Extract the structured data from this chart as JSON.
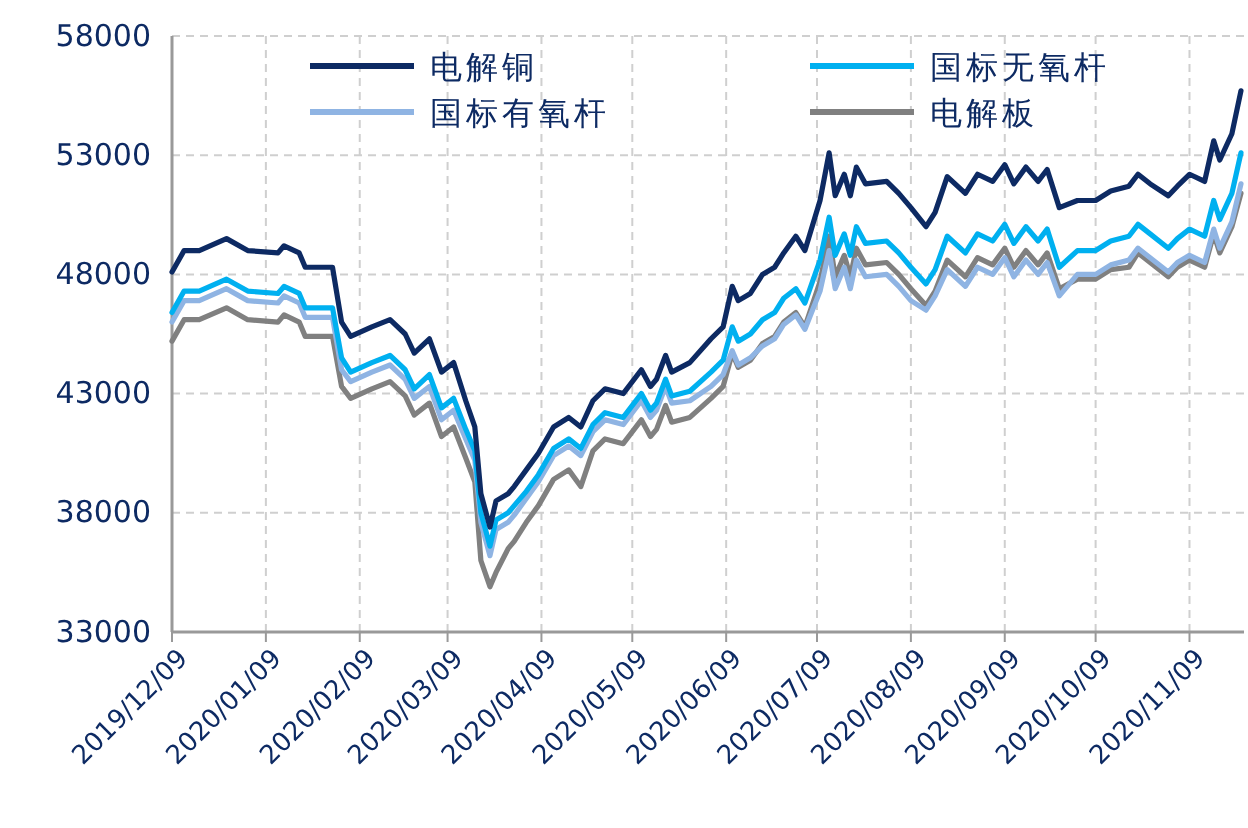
{
  "chart_data": {
    "type": "line",
    "x": [
      "2019-12-09",
      "2019-12-13",
      "2019-12-18",
      "2019-12-27",
      "2020-01-03",
      "2020-01-13",
      "2020-01-15",
      "2020-01-20",
      "2020-01-22",
      "2020-01-31",
      "2020-02-03",
      "2020-02-06",
      "2020-02-13",
      "2020-02-19",
      "2020-02-24",
      "2020-02-27",
      "2020-03-03",
      "2020-03-07",
      "2020-03-11",
      "2020-03-15",
      "2020-03-18",
      "2020-03-20",
      "2020-03-23",
      "2020-03-25",
      "2020-03-29",
      "2020-03-31",
      "2020-04-04",
      "2020-04-08",
      "2020-04-13",
      "2020-04-18",
      "2020-04-22",
      "2020-04-26",
      "2020-04-30",
      "2020-05-06",
      "2020-05-12",
      "2020-05-15",
      "2020-05-17",
      "2020-05-20",
      "2020-05-22",
      "2020-05-28",
      "2020-06-04",
      "2020-06-08",
      "2020-06-11",
      "2020-06-13",
      "2020-06-17",
      "2020-06-21",
      "2020-06-25",
      "2020-06-28",
      "2020-07-02",
      "2020-07-05",
      "2020-07-10",
      "2020-07-13",
      "2020-07-15",
      "2020-07-18",
      "2020-07-20",
      "2020-07-22",
      "2020-07-25",
      "2020-08-01",
      "2020-08-05",
      "2020-08-09",
      "2020-08-14",
      "2020-08-17",
      "2020-08-21",
      "2020-08-27",
      "2020-08-31",
      "2020-09-05",
      "2020-09-09",
      "2020-09-12",
      "2020-09-16",
      "2020-09-20",
      "2020-09-23",
      "2020-09-27",
      "2020-10-03",
      "2020-10-09",
      "2020-10-14",
      "2020-10-20",
      "2020-10-23",
      "2020-10-27",
      "2020-11-02",
      "2020-11-05",
      "2020-11-09",
      "2020-11-14",
      "2020-11-17",
      "2020-11-19",
      "2020-11-23",
      "2020-11-26"
    ],
    "series": [
      {
        "name": "电解铜",
        "color": "#0d2a63",
        "values": [
          48100,
          49000,
          49000,
          49500,
          49000,
          48900,
          49200,
          48900,
          48300,
          48300,
          46000,
          45400,
          45800,
          46100,
          45500,
          44700,
          45300,
          43900,
          44300,
          42700,
          41600,
          38800,
          37400,
          38500,
          38800,
          39100,
          39800,
          40500,
          41600,
          42000,
          41600,
          42700,
          43200,
          43000,
          44000,
          43300,
          43600,
          44600,
          43900,
          44300,
          45300,
          45800,
          47500,
          46900,
          47200,
          48000,
          48300,
          48900,
          49600,
          49000,
          51100,
          53100,
          51300,
          52200,
          51300,
          52500,
          51800,
          51900,
          51400,
          50800,
          50000,
          50600,
          52100,
          51400,
          52200,
          51900,
          52600,
          51800,
          52500,
          51900,
          52400,
          50800,
          51100,
          51100,
          51500,
          51700,
          52200,
          51800,
          51300,
          51700,
          52200,
          51900,
          53600,
          52800,
          53900,
          55700
        ]
      },
      {
        "name": "国标无氧杆",
        "color": "#00b0f0",
        "values": [
          46400,
          47300,
          47300,
          47800,
          47300,
          47200,
          47500,
          47200,
          46600,
          46600,
          44500,
          43900,
          44300,
          44600,
          44000,
          43200,
          43800,
          42400,
          42800,
          41500,
          40600,
          38000,
          36600,
          37700,
          38000,
          38300,
          38900,
          39600,
          40700,
          41100,
          40700,
          41700,
          42200,
          42000,
          43000,
          42300,
          42600,
          43600,
          42900,
          43100,
          43900,
          44400,
          45800,
          45200,
          45500,
          46100,
          46400,
          47000,
          47400,
          46800,
          48600,
          50400,
          48800,
          49700,
          48800,
          50000,
          49300,
          49400,
          48900,
          48300,
          47600,
          48200,
          49600,
          48900,
          49700,
          49400,
          50100,
          49300,
          50000,
          49400,
          49900,
          48300,
          49000,
          49000,
          49400,
          49600,
          50100,
          49700,
          49100,
          49500,
          49900,
          49600,
          51100,
          50300,
          51400,
          53100
        ]
      },
      {
        "name": "国标有氧杆",
        "color": "#8fb4e3",
        "values": [
          46000,
          46900,
          46900,
          47400,
          46900,
          46800,
          47100,
          46800,
          46200,
          46200,
          44000,
          43500,
          43900,
          44200,
          43600,
          42800,
          43300,
          41900,
          42300,
          41100,
          40200,
          37600,
          36200,
          37300,
          37600,
          37900,
          38600,
          39300,
          40400,
          40800,
          40400,
          41400,
          41900,
          41700,
          42700,
          42000,
          42300,
          43300,
          42600,
          42700,
          43300,
          43800,
          44800,
          44200,
          44500,
          45000,
          45300,
          45900,
          46300,
          45700,
          47300,
          49000,
          47400,
          48300,
          47400,
          48600,
          47900,
          48000,
          47500,
          46900,
          46500,
          47100,
          48200,
          47500,
          48300,
          48000,
          48700,
          47900,
          48600,
          48000,
          48500,
          47100,
          48000,
          48000,
          48400,
          48600,
          49100,
          48700,
          48100,
          48500,
          48800,
          48500,
          49900,
          49100,
          50200,
          51800
        ]
      },
      {
        "name": "电解板",
        "color": "#808080",
        "values": [
          45200,
          46100,
          46100,
          46600,
          46100,
          46000,
          46300,
          46000,
          45400,
          45400,
          43300,
          42800,
          43200,
          43500,
          42900,
          42100,
          42600,
          41200,
          41600,
          40300,
          39300,
          36000,
          34900,
          35500,
          36500,
          36800,
          37600,
          38300,
          39400,
          39800,
          39100,
          40600,
          41100,
          40900,
          41900,
          41200,
          41500,
          42500,
          41800,
          42000,
          42800,
          43300,
          44700,
          44100,
          44400,
          45100,
          45400,
          46000,
          46400,
          45800,
          47700,
          49600,
          47900,
          48800,
          47900,
          49100,
          48400,
          48500,
          48000,
          47400,
          46700,
          47300,
          48600,
          47900,
          48700,
          48400,
          49100,
          48300,
          49000,
          48400,
          48900,
          47400,
          47800,
          47800,
          48200,
          48300,
          48900,
          48500,
          47900,
          48300,
          48600,
          48300,
          49700,
          48900,
          50000,
          51400
        ]
      }
    ],
    "xlim": [
      "2019-12-09",
      "2020-11-27"
    ],
    "xticks": [
      {
        "value": "2019-12-09",
        "label": "2019/12/09"
      },
      {
        "value": "2020-01-09",
        "label": "2020/01/09"
      },
      {
        "value": "2020-02-09",
        "label": "2020/02/09"
      },
      {
        "value": "2020-03-09",
        "label": "2020/03/09"
      },
      {
        "value": "2020-04-09",
        "label": "2020/04/09"
      },
      {
        "value": "2020-05-09",
        "label": "2020/05/09"
      },
      {
        "value": "2020-06-09",
        "label": "2020/06/09"
      },
      {
        "value": "2020-07-09",
        "label": "2020/07/09"
      },
      {
        "value": "2020-08-09",
        "label": "2020/08/09"
      },
      {
        "value": "2020-09-09",
        "label": "2020/09/09"
      },
      {
        "value": "2020-10-09",
        "label": "2020/10/09"
      },
      {
        "value": "2020-11-09",
        "label": "2020/11/09"
      }
    ],
    "ylim": [
      33000,
      58000
    ],
    "yticks": [
      33000,
      38000,
      43000,
      48000,
      53000,
      58000
    ],
    "grid": true,
    "legend": "top",
    "marker": "none",
    "line_style": "solid"
  }
}
